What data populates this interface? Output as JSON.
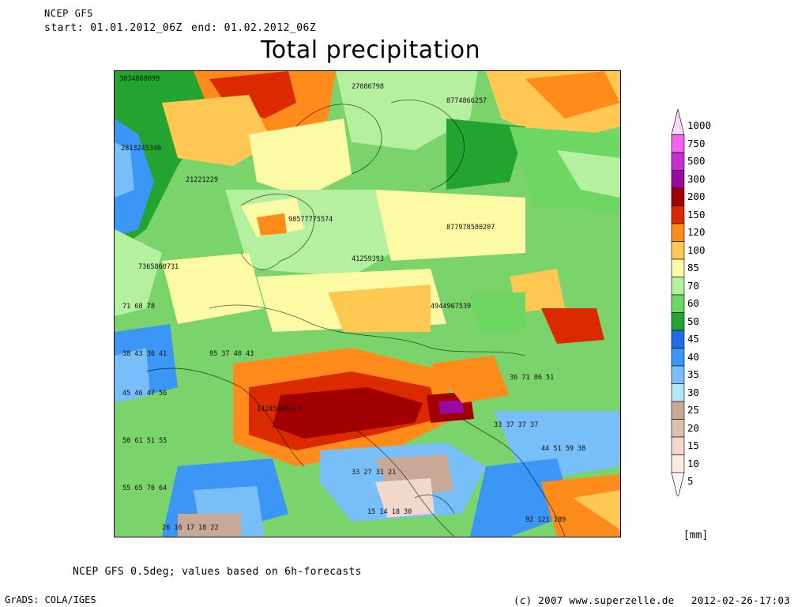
{
  "header": {
    "model": "NCEP GFS",
    "start": "start: 01.01.2012_06Z",
    "end": "end: 01.02.2012_06Z",
    "title": "Total precipitation"
  },
  "legend": {
    "unit": "[mm]",
    "levels": [
      {
        "label": "1000",
        "color": "#fcd7fc"
      },
      {
        "label": "750",
        "color": "#f064f0"
      },
      {
        "label": "500",
        "color": "#c42fd2"
      },
      {
        "label": "300",
        "color": "#9a0aa0"
      },
      {
        "label": "200",
        "color": "#a00000"
      },
      {
        "label": "150",
        "color": "#dc2a00"
      },
      {
        "label": "120",
        "color": "#ff8c1a"
      },
      {
        "label": "100",
        "color": "#fec853"
      },
      {
        "label": "85",
        "color": "#fdfaa5"
      },
      {
        "label": "70",
        "color": "#b4f0a0"
      },
      {
        "label": "60",
        "color": "#6ed764"
      },
      {
        "label": "50",
        "color": "#23a431"
      },
      {
        "label": "45",
        "color": "#1e6ee8"
      },
      {
        "label": "40",
        "color": "#3c96f5"
      },
      {
        "label": "35",
        "color": "#78bef8"
      },
      {
        "label": "30",
        "color": "#b4e6fa"
      },
      {
        "label": "25",
        "color": "#c8a896"
      },
      {
        "label": "20",
        "color": "#dcc0b0"
      },
      {
        "label": "15",
        "color": "#f0d8cc"
      },
      {
        "label": "10",
        "color": "#faeae2"
      },
      {
        "label": "5",
        "color": "#fff8f4"
      }
    ]
  },
  "footer": {
    "note": "NCEP GFS 0.5deg; values based on 6h-forecasts",
    "grads": "GrADS: COLA/IGES",
    "copyright": "(c) 2007 www.superzelle.de",
    "created": "2012-02-26-17:03"
  }
}
